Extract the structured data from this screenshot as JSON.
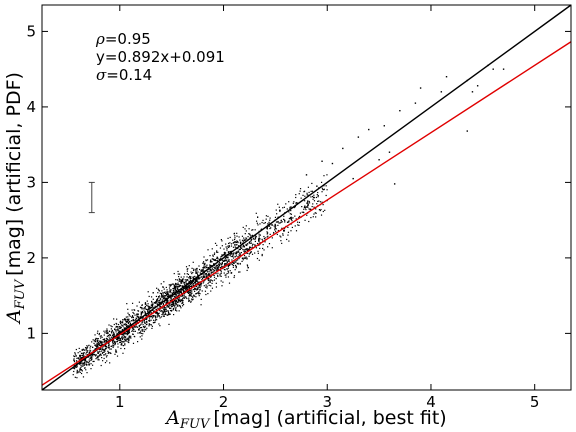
{
  "chart_data": {
    "type": "scatter",
    "title": "",
    "xlabel": {
      "symbol": "A",
      "subscript": "FUV",
      "text": "[mag] (artificial, best fit)"
    },
    "ylabel": {
      "symbol": "A",
      "subscript": "FUV",
      "text": "[mag] (artificial, PDF)"
    },
    "xlim": [
      0.25,
      5.35
    ],
    "ylim": [
      0.25,
      5.35
    ],
    "xticks": [
      1,
      2,
      3,
      4,
      5
    ],
    "yticks": [
      1,
      2,
      3,
      4,
      5
    ],
    "xtick_labels": [
      "1",
      "2",
      "3",
      "4",
      "5"
    ],
    "ytick_labels": [
      "1",
      "2",
      "3",
      "4",
      "5"
    ],
    "grid": false,
    "annotations": [
      {
        "symbol": "ρ",
        "text": "=0.95"
      },
      {
        "symbol": "",
        "text": "y=0.892x+0.091"
      },
      {
        "symbol": "σ",
        "text": "=0.14"
      }
    ],
    "lines": [
      {
        "kind": "one-to-one",
        "slope": 1.0,
        "intercept": 0.0,
        "color": "#000000"
      },
      {
        "kind": "fit",
        "slope": 0.892,
        "intercept": 0.091,
        "color": "#e00000"
      }
    ],
    "errorbar": {
      "x": 0.73,
      "y": 2.8,
      "yerr": 0.2
    },
    "scatter": {
      "marker_color": "#000000",
      "bulk": {
        "x_range": [
          0.55,
          3.0
        ],
        "scatter_sigma": 0.14
      },
      "outliers": [
        {
          "x": 2.8,
          "y": 3.1
        },
        {
          "x": 2.95,
          "y": 3.28
        },
        {
          "x": 3.05,
          "y": 3.25
        },
        {
          "x": 3.3,
          "y": 3.6
        },
        {
          "x": 3.4,
          "y": 3.7
        },
        {
          "x": 3.55,
          "y": 3.75
        },
        {
          "x": 3.7,
          "y": 3.95
        },
        {
          "x": 3.5,
          "y": 3.3
        },
        {
          "x": 3.65,
          "y": 2.98
        },
        {
          "x": 3.6,
          "y": 3.4
        },
        {
          "x": 3.85,
          "y": 4.05
        },
        {
          "x": 3.9,
          "y": 4.25
        },
        {
          "x": 4.1,
          "y": 4.2
        },
        {
          "x": 4.15,
          "y": 4.4
        },
        {
          "x": 4.35,
          "y": 4.35
        },
        {
          "x": 4.4,
          "y": 4.2
        },
        {
          "x": 4.45,
          "y": 4.28
        },
        {
          "x": 4.35,
          "y": 3.68
        },
        {
          "x": 4.55,
          "y": 4.55
        },
        {
          "x": 4.6,
          "y": 4.5
        },
        {
          "x": 4.7,
          "y": 4.5
        },
        {
          "x": 3.25,
          "y": 3.05
        },
        {
          "x": 3.15,
          "y": 3.45
        },
        {
          "x": 2.9,
          "y": 2.95
        }
      ]
    }
  }
}
